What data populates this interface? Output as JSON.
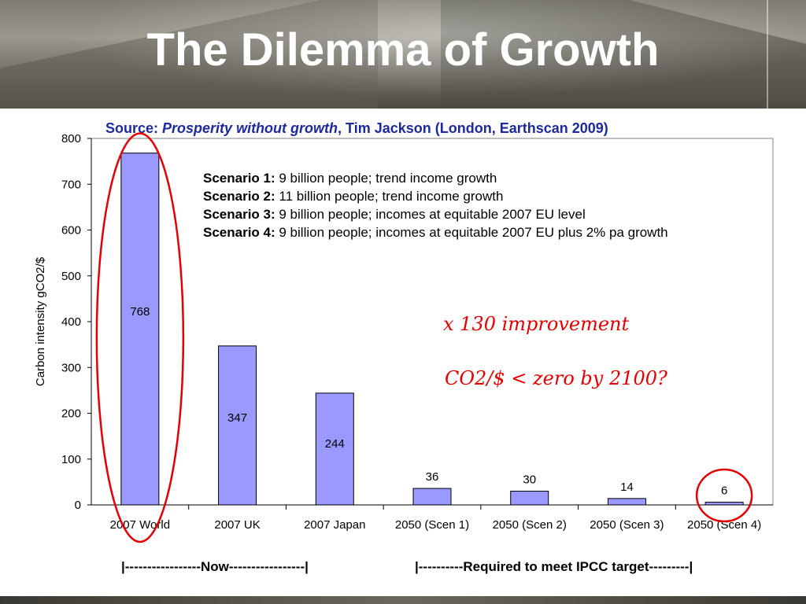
{
  "slide": {
    "title": "The Dilemma of Growth",
    "source_prefix": "Source: ",
    "source_italic": "Prosperity without growth",
    "source_suffix": ", Tim Jackson (London, Earthscan 2009)"
  },
  "chart_data": {
    "type": "bar",
    "categories": [
      "2007 World",
      "2007 UK",
      "2007 Japan",
      "2050 (Scen 1)",
      "2050 (Scen 2)",
      "2050 (Scen 3)",
      "2050 (Scen 4)"
    ],
    "values": [
      768,
      347,
      244,
      36,
      30,
      14,
      6
    ],
    "data_labels": [
      "768",
      "347",
      "244",
      "36",
      "30",
      "14",
      "6"
    ],
    "ylabel": "Carbon intensity gCO2/$",
    "ylim": [
      0,
      800
    ],
    "yticks": [
      0,
      100,
      200,
      300,
      400,
      500,
      600,
      700,
      800
    ],
    "grid": false,
    "bar_color": "#9999ff",
    "highlight_color": "#e30000",
    "highlighted_categories": [
      "2007 World",
      "2050 (Scen 4)"
    ]
  },
  "legend_box": {
    "lines": [
      {
        "label": "Scenario 1:",
        "text": " 9 billion people; trend income growth"
      },
      {
        "label": "Scenario 2:",
        "text": " 11 billion people; trend income growth"
      },
      {
        "label": "Scenario 3:",
        "text": " 9 billion people; incomes at equitable 2007 EU level"
      },
      {
        "label": "Scenario 4:",
        "text": " 9 billion people; incomes at equitable 2007 EU plus 2% pa growth"
      }
    ]
  },
  "annotations": {
    "improvement": "x 130 improvement",
    "question": "CO2/$ < zero by 2100?"
  },
  "footer": {
    "now": "|-----------------Now-----------------|",
    "required": "|----------Required to meet IPCC target---------|"
  }
}
